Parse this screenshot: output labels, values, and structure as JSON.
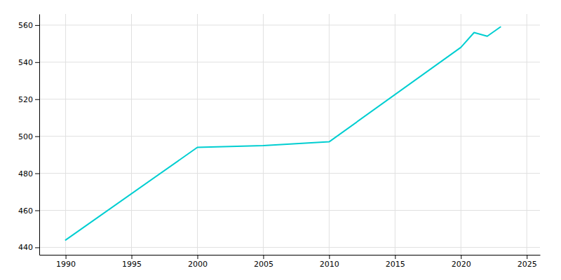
{
  "chart_data": {
    "type": "line",
    "x": [
      1990,
      2000,
      2005,
      2010,
      2020,
      2021,
      2022,
      2023
    ],
    "values": [
      444,
      494,
      495,
      497,
      548,
      556,
      554,
      559
    ],
    "color": "#00CED1",
    "xlim": [
      1988,
      2026
    ],
    "ylim": [
      436,
      566
    ],
    "xticks": [
      1990,
      1995,
      2000,
      2005,
      2010,
      2015,
      2020,
      2025
    ],
    "yticks": [
      440,
      460,
      480,
      500,
      520,
      540,
      560
    ],
    "grid": true
  }
}
